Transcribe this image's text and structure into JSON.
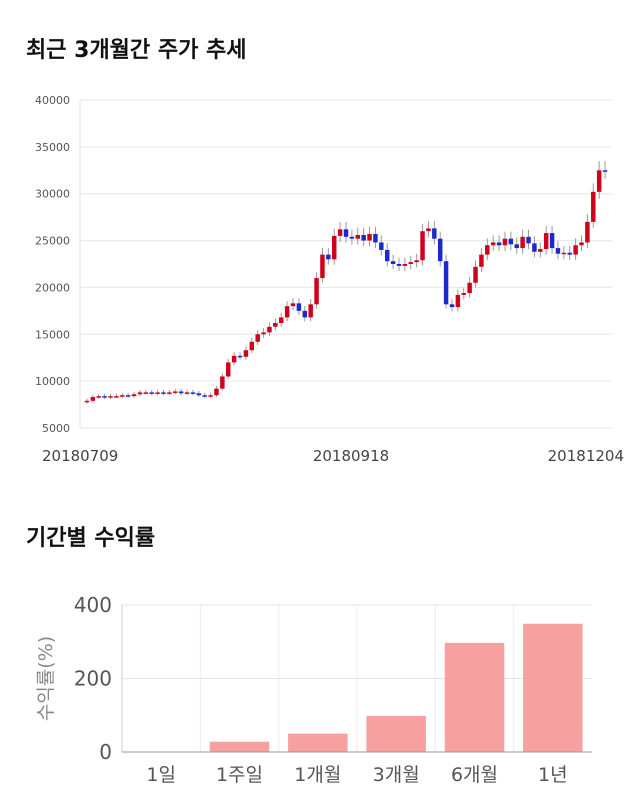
{
  "section1": {
    "title": "최근 3개월간 주가 추세"
  },
  "section2": {
    "title": "기간별 수익률"
  },
  "chart_data": [
    {
      "type": "candlestick",
      "title": "최근 3개월간 주가 추세",
      "ylim": [
        5000,
        40000
      ],
      "yticks": [
        "40000",
        "35000",
        "30000",
        "25000",
        "20000",
        "15000",
        "10000",
        "5000"
      ],
      "xticks": [
        "20180709",
        "20180918",
        "20181204"
      ],
      "grid": true,
      "colors": {
        "up": "#d0021b",
        "down": "#1a2bcc",
        "wick": "#999999"
      },
      "closes": [
        7900,
        8300,
        8400,
        8300,
        8400,
        8400,
        8500,
        8400,
        8600,
        8800,
        8800,
        8700,
        8800,
        8700,
        8800,
        8900,
        8700,
        8800,
        8700,
        8500,
        8400,
        8500,
        9200,
        10500,
        12000,
        12700,
        12600,
        13300,
        14200,
        15000,
        15200,
        15800,
        16200,
        16800,
        18000,
        18300,
        17500,
        16800,
        18200,
        21000,
        23500,
        23000,
        25500,
        26200,
        25400,
        25200,
        25600,
        25000,
        25700,
        24800,
        24000,
        22800,
        22500,
        22300,
        22500,
        22700,
        22900,
        26000,
        26300,
        25200,
        22800,
        18200,
        17900,
        19200,
        19400,
        20500,
        22200,
        23500,
        24500,
        24800,
        24500,
        25200,
        24600,
        24200,
        25400,
        24700,
        23800,
        24100,
        25800,
        24200,
        23600,
        23700,
        23500,
        24500,
        24800,
        27000,
        30200,
        32500,
        32400
      ]
    },
    {
      "type": "bar",
      "title": "기간별 수익률",
      "ylabel": "수익률(%)",
      "ylim": [
        0,
        400
      ],
      "yticks": [
        "400",
        "200",
        "0"
      ],
      "categories": [
        "1일",
        "1주일",
        "1개월",
        "3개월",
        "6개월",
        "1년"
      ],
      "values": [
        0,
        28,
        50,
        98,
        297,
        349
      ],
      "bar_color": "#f8a0a0"
    }
  ]
}
